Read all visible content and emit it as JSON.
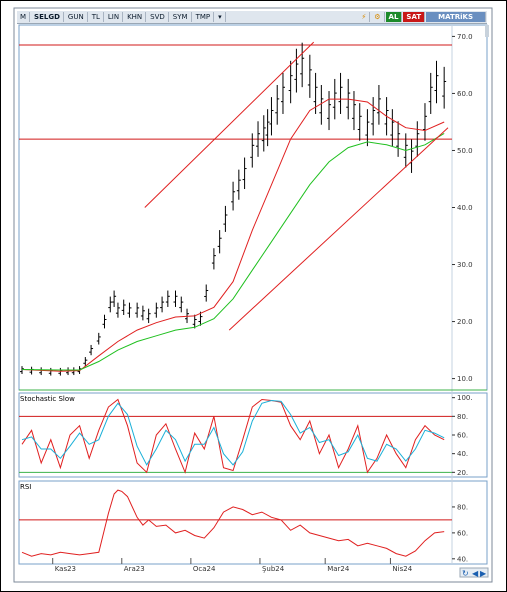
{
  "toolbar": {
    "menu": "M",
    "symbol": "SELGD",
    "period": "GUN",
    "currency": "TL",
    "scale": "LIN",
    "view1": "KHN",
    "view2": "SVD",
    "view3": "SYM",
    "view4": "TMP",
    "buy": "AL",
    "sell": "SAT",
    "brand": "MATRiKS"
  },
  "colors": {
    "price_bar": "#000000",
    "ma_fast": "#e02020",
    "ma_slow": "#20c020",
    "trendline": "#e02020",
    "hline": "#d01818",
    "stoch_k": "#e02020",
    "stoch_d": "#1ab0d8",
    "rsi": "#e02020"
  },
  "chart_data": [
    {
      "type": "line",
      "panel": "price",
      "ylim": [
        8,
        72
      ],
      "yticks": [
        10,
        20,
        30,
        40,
        50,
        60,
        70
      ],
      "xticks": [
        "Kas23",
        "Ara23",
        "Oca24",
        "Şub24",
        "Mar24",
        "Nis24"
      ],
      "hlines": [
        68.5,
        52
      ],
      "series": [
        {
          "style": "ohlc-bars",
          "x": [
            0,
            5,
            10,
            15,
            20,
            24,
            27,
            30,
            33,
            36,
            40,
            43,
            46,
            48,
            50,
            53,
            56,
            60,
            63,
            66,
            70,
            73,
            76,
            80,
            83,
            86,
            90,
            93,
            96,
            100,
            103,
            106,
            110,
            113,
            116,
            120,
            123,
            126,
            128,
            130,
            133,
            136,
            140,
            143,
            146,
            150,
            153,
            156,
            160,
            163,
            166,
            170,
            173,
            176,
            180,
            183,
            186,
            190,
            193,
            196,
            200,
            203,
            206,
            210,
            213,
            216,
            220
          ],
          "y": [
            11.5,
            11.4,
            11.3,
            11.2,
            11.2,
            11.3,
            11.3,
            11.5,
            13,
            15,
            17,
            20,
            23,
            24,
            22,
            22.5,
            22,
            22,
            21.5,
            21,
            22,
            23,
            24,
            24,
            23,
            21,
            20,
            20.5,
            25,
            31,
            34,
            38,
            42,
            44,
            46,
            50,
            52,
            53,
            54,
            56,
            58,
            60,
            62,
            64,
            65,
            63,
            60,
            58,
            57,
            59,
            60,
            59,
            57,
            55,
            54,
            56,
            58,
            56,
            54,
            52,
            50,
            49,
            52,
            55,
            60,
            62,
            61
          ]
        }
      ]
    },
    {
      "type": "line",
      "panel": "price-averages",
      "series": [
        {
          "style": "ma-fast",
          "x": [
            0,
            20,
            30,
            40,
            50,
            60,
            70,
            80,
            90,
            100,
            110,
            120,
            130,
            140,
            150,
            160,
            170,
            180,
            190,
            200,
            210,
            220
          ],
          "y": [
            11.6,
            11.3,
            11.4,
            14,
            16.5,
            18.5,
            19.8,
            20.8,
            21,
            22.5,
            27,
            36,
            44,
            52,
            57,
            59,
            59,
            58.5,
            56,
            54,
            53.5,
            55
          ]
        },
        {
          "style": "ma-slow",
          "x": [
            0,
            20,
            30,
            40,
            50,
            60,
            70,
            80,
            90,
            100,
            110,
            120,
            130,
            140,
            150,
            160,
            170,
            180,
            190,
            200,
            210,
            220
          ],
          "y": [
            11.6,
            11.5,
            11.5,
            13,
            15,
            16.5,
            17.5,
            18.5,
            19,
            20.5,
            24,
            29,
            34,
            39,
            44,
            48,
            50.5,
            51.5,
            51,
            50,
            51,
            53
          ]
        },
        {
          "style": "trendline",
          "x": [
            64,
            152
          ],
          "y": [
            40,
            69
          ]
        },
        {
          "style": "trendline",
          "x": [
            108,
            222
          ],
          "y": [
            18.5,
            54
          ]
        }
      ]
    },
    {
      "type": "line",
      "panel": "stochastic",
      "title": "Stochastic Slow",
      "ylim": [
        15,
        105
      ],
      "yticks": [
        20,
        40,
        60,
        80,
        100
      ],
      "hlines": [
        80,
        20
      ],
      "series": [
        {
          "style": "stoch-k",
          "x": [
            0,
            5,
            10,
            15,
            20,
            25,
            30,
            35,
            40,
            45,
            50,
            55,
            60,
            65,
            70,
            75,
            80,
            85,
            90,
            95,
            100,
            105,
            110,
            115,
            120,
            125,
            130,
            135,
            140,
            145,
            150,
            155,
            160,
            165,
            170,
            175,
            180,
            185,
            190,
            195,
            200,
            205,
            210,
            215,
            220
          ],
          "y": [
            50,
            65,
            30,
            55,
            25,
            60,
            70,
            35,
            65,
            90,
            98,
            70,
            30,
            20,
            60,
            72,
            45,
            20,
            62,
            45,
            80,
            25,
            22,
            55,
            90,
            98,
            97,
            95,
            70,
            55,
            75,
            40,
            60,
            25,
            45,
            70,
            20,
            35,
            60,
            40,
            25,
            55,
            70,
            60,
            55
          ]
        },
        {
          "style": "stoch-d",
          "x": [
            0,
            5,
            10,
            15,
            20,
            25,
            30,
            35,
            40,
            45,
            50,
            55,
            60,
            65,
            70,
            75,
            80,
            85,
            90,
            95,
            100,
            105,
            110,
            115,
            120,
            125,
            130,
            135,
            140,
            145,
            150,
            155,
            160,
            165,
            170,
            175,
            180,
            185,
            190,
            195,
            200,
            205,
            210,
            215,
            220
          ],
          "y": [
            55,
            58,
            45,
            45,
            35,
            48,
            62,
            50,
            55,
            80,
            94,
            82,
            48,
            28,
            45,
            65,
            55,
            32,
            50,
            50,
            68,
            40,
            28,
            42,
            75,
            94,
            97,
            96,
            82,
            62,
            68,
            52,
            55,
            38,
            42,
            60,
            35,
            32,
            50,
            45,
            32,
            45,
            65,
            62,
            57
          ]
        }
      ]
    },
    {
      "type": "line",
      "panel": "rsi",
      "title": "RSI",
      "ylim": [
        36,
        100
      ],
      "yticks": [
        40,
        60,
        80
      ],
      "hlines": [
        70
      ],
      "series": [
        {
          "style": "rsi",
          "x": [
            0,
            5,
            10,
            15,
            20,
            25,
            30,
            35,
            40,
            45,
            48,
            50,
            52,
            55,
            60,
            63,
            66,
            70,
            75,
            80,
            85,
            90,
            95,
            100,
            105,
            110,
            115,
            120,
            125,
            130,
            135,
            140,
            145,
            150,
            155,
            160,
            165,
            170,
            175,
            180,
            185,
            190,
            195,
            200,
            205,
            210,
            215,
            220
          ],
          "y": [
            45,
            42,
            44,
            43,
            45,
            44,
            43,
            44,
            45,
            75,
            90,
            93,
            92,
            88,
            72,
            66,
            70,
            65,
            66,
            60,
            62,
            58,
            56,
            64,
            76,
            80,
            78,
            74,
            76,
            72,
            70,
            62,
            66,
            60,
            58,
            56,
            54,
            55,
            50,
            52,
            50,
            48,
            44,
            42,
            46,
            54,
            60,
            61
          ]
        }
      ]
    }
  ]
}
